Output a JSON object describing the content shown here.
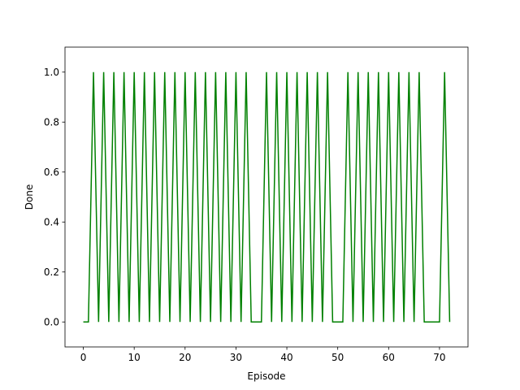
{
  "chart_data": {
    "type": "line",
    "title": "",
    "xlabel": "Episode",
    "ylabel": "Done",
    "xlim": [
      -3.6,
      75.6
    ],
    "ylim": [
      -0.1,
      1.1
    ],
    "x_ticks": [
      0,
      10,
      20,
      30,
      40,
      50,
      60,
      70
    ],
    "y_ticks": [
      0.0,
      0.2,
      0.4,
      0.6,
      0.8,
      1.0
    ],
    "x_tick_labels": [
      "0",
      "10",
      "20",
      "30",
      "40",
      "50",
      "60",
      "70"
    ],
    "y_tick_labels": [
      "0.0",
      "0.2",
      "0.4",
      "0.6",
      "0.8",
      "1.0"
    ],
    "grid": false,
    "legend": "none",
    "line_color": "#008000",
    "series": [
      {
        "x": [
          0,
          1,
          2,
          3,
          4,
          5,
          6,
          7,
          8,
          9,
          10,
          11,
          12,
          13,
          14,
          15,
          16,
          17,
          18,
          19,
          20,
          21,
          22,
          23,
          24,
          25,
          26,
          27,
          28,
          29,
          30,
          31,
          32,
          33,
          34,
          35,
          36,
          37,
          38,
          39,
          40,
          41,
          42,
          43,
          44,
          45,
          46,
          47,
          48,
          49,
          50,
          51,
          52,
          53,
          54,
          55,
          56,
          57,
          58,
          59,
          60,
          61,
          62,
          63,
          64,
          65,
          66,
          67,
          68,
          69,
          70,
          71,
          72
        ],
        "values": [
          0,
          0,
          1,
          0,
          1,
          0,
          1,
          0,
          1,
          0,
          1,
          0,
          1,
          0,
          1,
          0,
          1,
          0,
          1,
          0,
          1,
          0,
          1,
          0,
          1,
          0,
          1,
          0,
          1,
          0,
          1,
          0,
          1,
          0,
          0,
          0,
          1,
          0,
          1,
          0,
          1,
          0,
          1,
          0,
          1,
          0,
          1,
          0,
          1,
          0,
          0,
          0,
          1,
          0,
          1,
          0,
          1,
          0,
          1,
          0,
          1,
          0,
          1,
          0,
          1,
          0,
          1,
          0,
          0,
          0,
          0,
          1,
          0
        ]
      }
    ]
  }
}
